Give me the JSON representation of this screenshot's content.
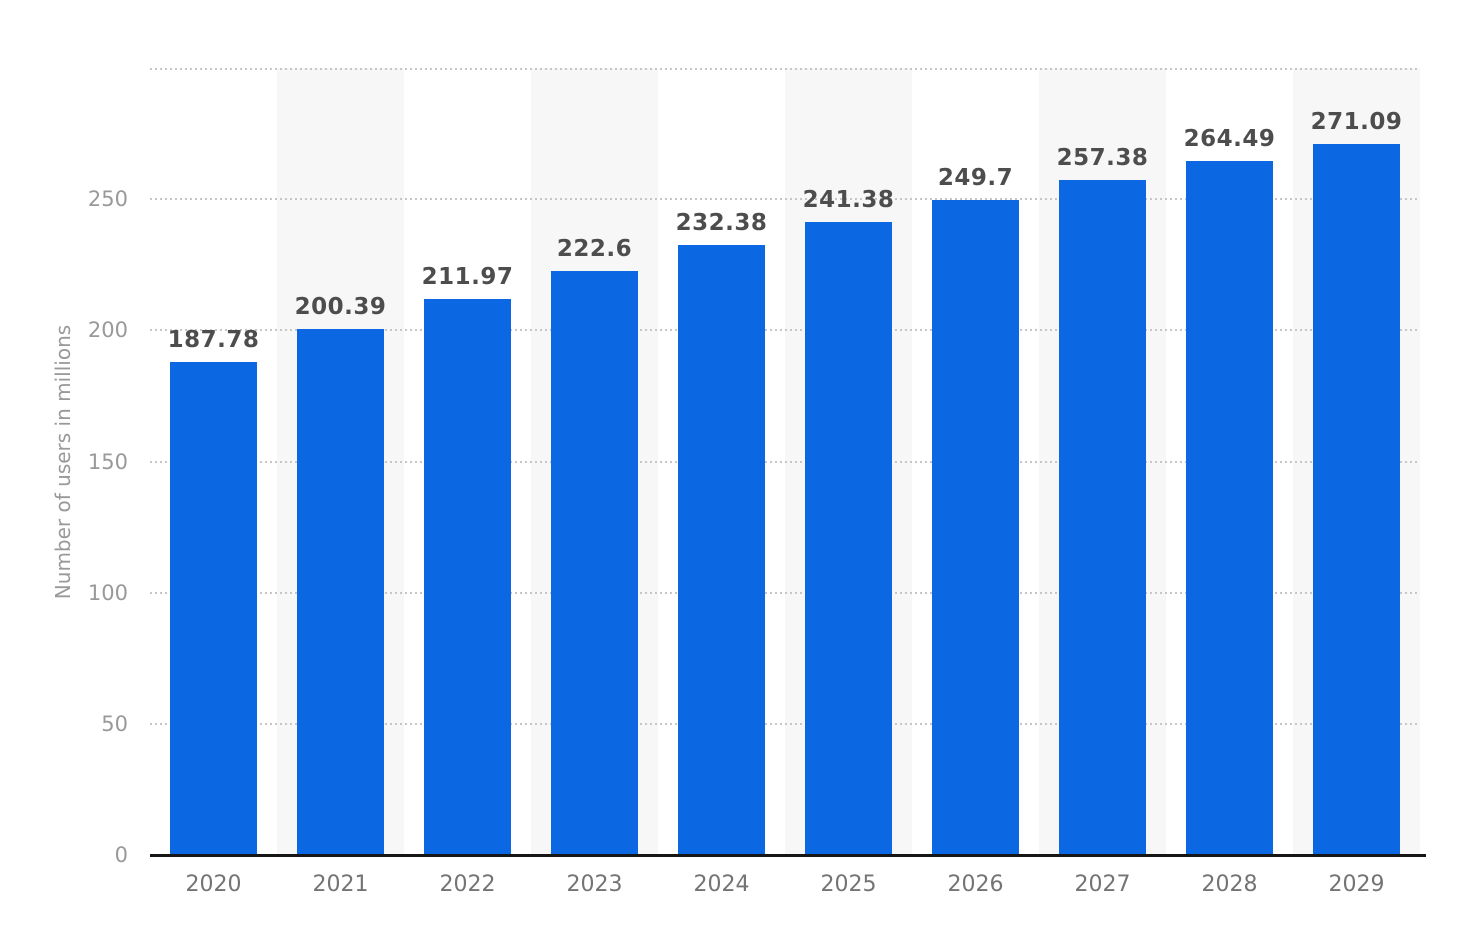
{
  "chart_data": {
    "type": "bar",
    "title": "",
    "categories": [
      "2020",
      "2021",
      "2022",
      "2023",
      "2024",
      "2025",
      "2026",
      "2027",
      "2028",
      "2029"
    ],
    "values": [
      187.78,
      200.39,
      211.97,
      222.6,
      232.38,
      241.38,
      249.7,
      257.38,
      264.49,
      271.09
    ],
    "value_labels": [
      "187.78",
      "200.39",
      "211.97",
      "222.6",
      "232.38",
      "241.38",
      "249.7",
      "257.38",
      "264.49",
      "271.09"
    ],
    "xlabel": "",
    "ylabel": "Number of users in millions",
    "ylim": [
      0,
      300
    ],
    "yticks": [
      0,
      50,
      100,
      150,
      200,
      250
    ],
    "gridline_values": [
      50,
      100,
      150,
      200,
      250,
      300
    ],
    "grid": "horizontal dotted",
    "legend": "none",
    "stripes": "alternating vertical column backgrounds on odd-indexed columns",
    "colors": {
      "bar": "#0b68e2",
      "stripe": "#f7f7f7",
      "gridline": "#c6c6c6",
      "axis_line": "#161616",
      "value_label": "#4d4d4d",
      "x_tick_label": "#747474",
      "y_tick_label": "#999999",
      "y_axis_title": "#999999",
      "background": "#ffffff"
    }
  }
}
